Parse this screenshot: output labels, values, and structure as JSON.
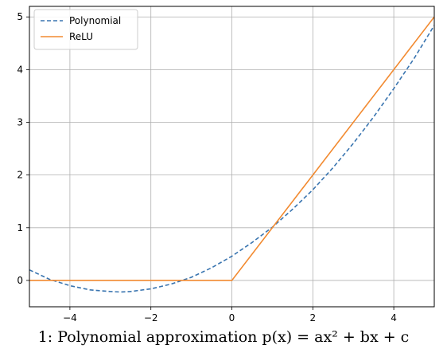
{
  "chart_data": {
    "type": "line",
    "title": "",
    "xlabel": "",
    "ylabel": "",
    "xlim": [
      -5,
      5
    ],
    "ylim": [
      -0.5,
      5.2
    ],
    "xticks": [
      -4,
      -2,
      0,
      2,
      4
    ],
    "yticks": [
      0,
      1,
      2,
      3,
      4,
      5
    ],
    "xtick_labels": [
      "−4",
      "−2",
      "0",
      "2",
      "4"
    ],
    "ytick_labels": [
      "0",
      "1",
      "2",
      "3",
      "4",
      "5"
    ],
    "grid": true,
    "legend": "top-left",
    "series": [
      {
        "name": "Polynomial",
        "style": "dashed",
        "color": "#3a75b0",
        "x": [
          -5,
          -4.5,
          -4,
          -3.5,
          -3,
          -2.75,
          -2.5,
          -2,
          -1.5,
          -1,
          -0.5,
          0,
          0.5,
          1,
          1.5,
          2,
          2.5,
          3,
          3.5,
          4,
          4.5,
          5
        ],
        "y": [
          0.2,
          0.02,
          -0.1,
          -0.18,
          -0.21,
          -0.22,
          -0.21,
          -0.16,
          -0.07,
          0.06,
          0.24,
          0.46,
          0.72,
          1.01,
          1.35,
          1.72,
          2.14,
          2.6,
          3.1,
          3.64,
          4.21,
          4.84
        ]
      },
      {
        "name": "ReLU",
        "style": "solid",
        "color": "#f28a30",
        "x": [
          -5,
          0,
          5
        ],
        "y": [
          0,
          0,
          5
        ]
      }
    ]
  },
  "caption": "1: Polynomial approximation p(x) = ax² + bx + c"
}
